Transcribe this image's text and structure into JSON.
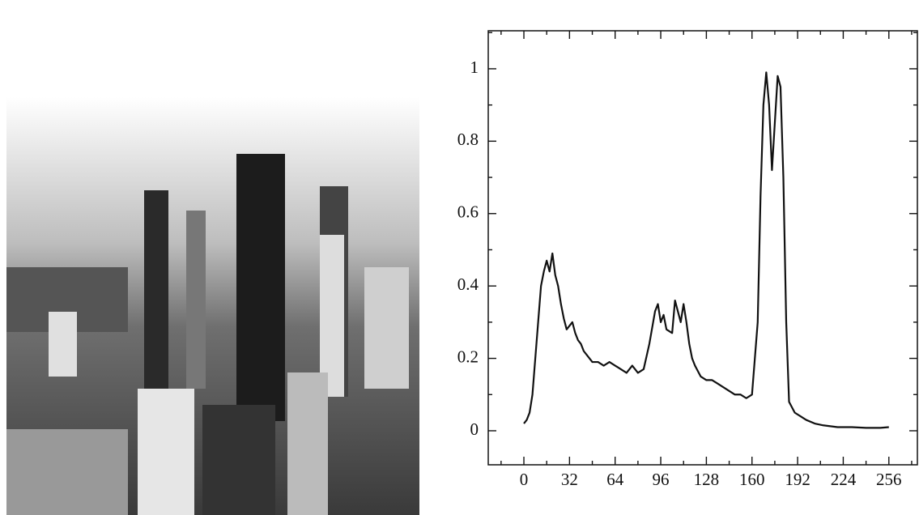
{
  "chart_data": {
    "type": "line",
    "x": [
      0,
      2,
      4,
      6,
      8,
      10,
      12,
      14,
      16,
      18,
      20,
      22,
      24,
      26,
      28,
      30,
      32,
      34,
      36,
      38,
      40,
      42,
      44,
      48,
      52,
      56,
      60,
      64,
      68,
      72,
      76,
      80,
      84,
      88,
      92,
      94,
      96,
      98,
      100,
      104,
      106,
      108,
      110,
      112,
      114,
      116,
      118,
      120,
      124,
      128,
      132,
      136,
      140,
      144,
      148,
      152,
      156,
      160,
      162,
      164,
      166,
      168,
      170,
      172,
      174,
      176,
      178,
      180,
      182,
      184,
      186,
      190,
      194,
      198,
      204,
      210,
      220,
      230,
      240,
      250,
      256
    ],
    "series": [
      {
        "color": "#111111",
        "values": [
          0.02,
          0.03,
          0.05,
          0.1,
          0.2,
          0.3,
          0.4,
          0.44,
          0.47,
          0.44,
          0.49,
          0.43,
          0.4,
          0.35,
          0.31,
          0.28,
          0.29,
          0.3,
          0.27,
          0.25,
          0.24,
          0.22,
          0.21,
          0.19,
          0.19,
          0.18,
          0.19,
          0.18,
          0.17,
          0.16,
          0.18,
          0.16,
          0.17,
          0.24,
          0.33,
          0.35,
          0.3,
          0.32,
          0.28,
          0.27,
          0.36,
          0.33,
          0.3,
          0.35,
          0.3,
          0.24,
          0.2,
          0.18,
          0.15,
          0.14,
          0.14,
          0.13,
          0.12,
          0.11,
          0.1,
          0.1,
          0.09,
          0.1,
          0.2,
          0.3,
          0.65,
          0.9,
          0.99,
          0.9,
          0.72,
          0.85,
          0.98,
          0.95,
          0.7,
          0.3,
          0.08,
          0.05,
          0.04,
          0.03,
          0.02,
          0.015,
          0.01,
          0.01,
          0.008,
          0.008,
          0.01
        ]
      }
    ],
    "xlim": [
      -25,
      276
    ],
    "ylim": [
      -0.094,
      1.105
    ],
    "xticks": [
      0,
      32,
      64,
      96,
      128,
      160,
      192,
      224,
      256
    ],
    "yticks": [
      0,
      0.2,
      0.4,
      0.6,
      0.8,
      1
    ],
    "xminor_ticks": [
      -16,
      16,
      48,
      80,
      112,
      144,
      176,
      208,
      240,
      272
    ],
    "yminor_ticks": [
      -0.1,
      0.1,
      0.3,
      0.5,
      0.7,
      0.9,
      1.1
    ]
  }
}
